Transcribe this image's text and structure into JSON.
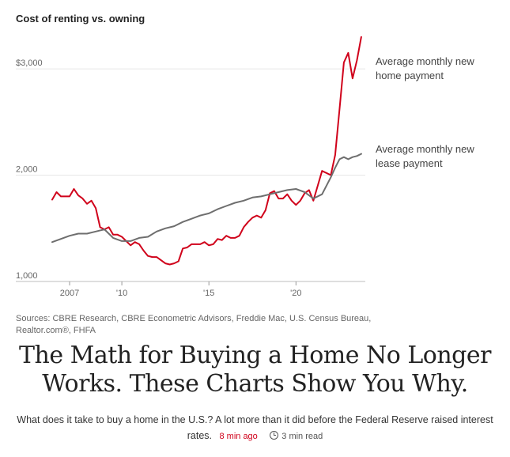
{
  "chart_data": {
    "type": "line",
    "title": "Cost of renting vs. owning",
    "xlabel": "",
    "ylabel": "",
    "x_range": [
      2006.0,
      2023.8
    ],
    "ylim": [
      1000,
      3350
    ],
    "y_ticks": [
      {
        "value": 3000,
        "label": "$3,000"
      },
      {
        "value": 2000,
        "label": "2,000"
      },
      {
        "value": 1000,
        "label": "1,000"
      }
    ],
    "x_ticks": [
      {
        "value": 2007,
        "label": "2007"
      },
      {
        "value": 2010,
        "label": "'10"
      },
      {
        "value": 2015,
        "label": "'15"
      },
      {
        "value": 2020,
        "label": "'20"
      }
    ],
    "grid": true,
    "series": [
      {
        "name": "Average monthly new home payment",
        "label_lines": [
          "Average monthly new",
          "home payment"
        ],
        "color": "#d0021b",
        "x": [
          2006.0,
          2006.25,
          2006.5,
          2006.75,
          2007.0,
          2007.25,
          2007.5,
          2007.75,
          2008.0,
          2008.25,
          2008.5,
          2008.75,
          2009.0,
          2009.25,
          2009.5,
          2009.75,
          2010.0,
          2010.25,
          2010.5,
          2010.75,
          2011.0,
          2011.25,
          2011.5,
          2011.75,
          2012.0,
          2012.25,
          2012.5,
          2012.75,
          2013.0,
          2013.25,
          2013.5,
          2013.75,
          2014.0,
          2014.25,
          2014.5,
          2014.75,
          2015.0,
          2015.25,
          2015.5,
          2015.75,
          2016.0,
          2016.25,
          2016.5,
          2016.75,
          2017.0,
          2017.25,
          2017.5,
          2017.75,
          2018.0,
          2018.25,
          2018.5,
          2018.75,
          2019.0,
          2019.25,
          2019.5,
          2019.75,
          2020.0,
          2020.25,
          2020.5,
          2020.75,
          2021.0,
          2021.25,
          2021.5,
          2021.75,
          2022.0,
          2022.25,
          2022.5,
          2022.75,
          2023.0,
          2023.25,
          2023.5,
          2023.75
        ],
        "values": [
          1770,
          1840,
          1800,
          1800,
          1800,
          1870,
          1810,
          1780,
          1730,
          1760,
          1690,
          1510,
          1490,
          1510,
          1440,
          1440,
          1420,
          1380,
          1340,
          1370,
          1350,
          1290,
          1240,
          1230,
          1230,
          1200,
          1170,
          1160,
          1170,
          1190,
          1310,
          1320,
          1350,
          1350,
          1350,
          1370,
          1340,
          1350,
          1400,
          1390,
          1430,
          1410,
          1410,
          1430,
          1510,
          1560,
          1600,
          1620,
          1600,
          1670,
          1830,
          1850,
          1780,
          1780,
          1820,
          1760,
          1720,
          1760,
          1830,
          1860,
          1760,
          1900,
          2040,
          2020,
          2000,
          2190,
          2620,
          3060,
          3150,
          2910,
          3080,
          3300
        ]
      },
      {
        "name": "Average monthly new lease payment",
        "label_lines": [
          "Average monthly new",
          "lease payment"
        ],
        "color": "#6e6e6e",
        "x": [
          2006.0,
          2006.5,
          2007.0,
          2007.5,
          2008.0,
          2008.5,
          2009.0,
          2009.5,
          2010.0,
          2010.5,
          2011.0,
          2011.5,
          2012.0,
          2012.5,
          2013.0,
          2013.5,
          2014.0,
          2014.5,
          2015.0,
          2015.5,
          2016.0,
          2016.5,
          2017.0,
          2017.5,
          2018.0,
          2018.5,
          2019.0,
          2019.5,
          2020.0,
          2020.5,
          2021.0,
          2021.5,
          2022.0,
          2022.25,
          2022.5,
          2022.75,
          2023.0,
          2023.25,
          2023.5,
          2023.75
        ],
        "values": [
          1370,
          1400,
          1430,
          1450,
          1450,
          1470,
          1490,
          1410,
          1380,
          1380,
          1410,
          1420,
          1470,
          1500,
          1520,
          1560,
          1590,
          1620,
          1640,
          1680,
          1710,
          1740,
          1760,
          1790,
          1800,
          1820,
          1840,
          1860,
          1870,
          1840,
          1780,
          1820,
          1980,
          2070,
          2150,
          2170,
          2150,
          2170,
          2180,
          2200
        ]
      }
    ]
  },
  "sources": "Sources: CBRE Research, CBRE Econometric Advisors, Freddie Mac, U.S. Census Bureau, Realtor.com®, FHFA",
  "article": {
    "headline": "The Math for Buying a Home No Longer Works. These Charts Show You Why.",
    "dek": "What does it take to buy a home in the U.S.? A lot more than it did before the Federal Reserve raised interest rates.",
    "time_ago": "8 min ago",
    "read_time": "3 min read",
    "accent_color": "#d0021b"
  }
}
